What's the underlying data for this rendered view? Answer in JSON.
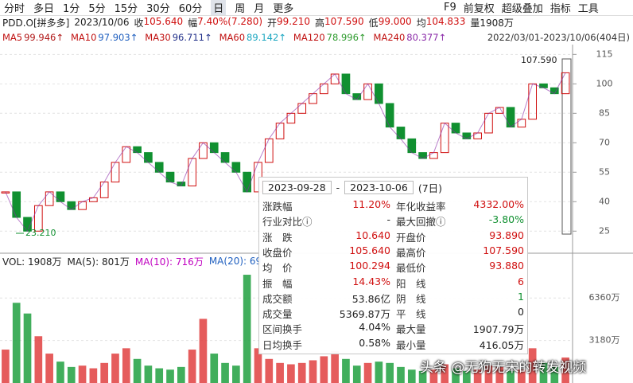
{
  "toolbar": {
    "tabs": [
      "分时",
      "多日",
      "1分",
      "5分",
      "15分",
      "30分",
      "60分",
      "日",
      "周",
      "月",
      "更多"
    ],
    "tools": [
      "F9",
      "前复权",
      "超级叠加",
      "指标",
      "工具"
    ]
  },
  "quote": {
    "symbol": "PDD.O[拼多多]",
    "date": "2023/10/06",
    "items": [
      {
        "label": "收",
        "value": "105.640",
        "color": "#d01010"
      },
      {
        "label": "幅",
        "value": "7.40%(7.280)",
        "color": "#d01010"
      },
      {
        "label": "开",
        "value": "99.210",
        "color": "#d01010"
      },
      {
        "label": "高",
        "value": "107.590",
        "color": "#d01010"
      },
      {
        "label": "低",
        "value": "99.000",
        "color": "#d01010"
      },
      {
        "label": "均",
        "value": "104.833",
        "color": "#d01010"
      },
      {
        "label": "量",
        "value": "1908万",
        "color": "#222222"
      }
    ]
  },
  "ma_legend": [
    {
      "name": "MA5",
      "value": "99.946↑",
      "color": "#b01818"
    },
    {
      "name": "MA10",
      "value": "97.903↑",
      "color": "#1f5fbf"
    },
    {
      "name": "MA30",
      "value": "96.711↑",
      "color": "#23318a"
    },
    {
      "name": "MA60",
      "value": "89.142↑",
      "color": "#1aa6c0"
    },
    {
      "name": "MA120",
      "value": "78.996↑",
      "color": "#2e9b2e"
    },
    {
      "name": "MA240",
      "value": "80.377↑",
      "color": "#8a2aa8"
    }
  ],
  "range": "2022/03/01-2023/10/06(404日)",
  "price": {
    "ylim": [
      17,
      120
    ],
    "yticks": [
      25,
      40,
      55,
      70,
      85,
      100,
      115
    ],
    "grid": true,
    "up_color": "#d01010",
    "down_color": "#109030",
    "closes": [
      45,
      32,
      25,
      38,
      45,
      40,
      36,
      40,
      42,
      50,
      60,
      68,
      65,
      60,
      55,
      50,
      48,
      62,
      70,
      65,
      60,
      55,
      45,
      60,
      72,
      80,
      85,
      90,
      95,
      100,
      105,
      95,
      92,
      100,
      90,
      78,
      72,
      65,
      62,
      65,
      80,
      75,
      72,
      75,
      85,
      88,
      78,
      82,
      100,
      98,
      95,
      105.64
    ],
    "low_label": "23.210",
    "high_label": "107.590"
  },
  "volume": {
    "legend": [
      "VOL: 1908万",
      "MA(5): 801万",
      "MA(10): 716万",
      "MA(20): 69"
    ],
    "ylim": [
      0,
      8400
    ],
    "yticks": [
      {
        "value": 3180,
        "label": "3180万"
      },
      {
        "value": 6360,
        "label": "6360万"
      }
    ],
    "values": [
      2500,
      6000,
      5200,
      3500,
      2200,
      1600,
      1200,
      1300,
      1100,
      1500,
      2200,
      2600,
      1800,
      1300,
      1100,
      1000,
      1200,
      2500,
      4800,
      2200,
      1500,
      1300,
      8100,
      2600,
      1800,
      1500,
      1400,
      1500,
      1700,
      2000,
      2400,
      1800,
      1300,
      1500,
      1600,
      1500,
      1200,
      1000,
      900,
      1000,
      1400,
      1100,
      900,
      1000,
      1300,
      1200,
      900,
      1000,
      2600,
      1500,
      1200,
      1908
    ]
  },
  "popup": {
    "start": "2023-09-28",
    "sep": "-",
    "end": "2023-10-06",
    "days": "(7日)",
    "rows": [
      [
        {
          "label": "涨跌幅",
          "value": "11.20%",
          "color": "#d01010"
        },
        {
          "label": "年化收益率",
          "value": "4332.00%",
          "color": "#d01010"
        }
      ],
      [
        {
          "label": "行业对比ⓘ",
          "value": "-",
          "color": "#222222"
        },
        {
          "label": "最大回撤ⓘ",
          "value": "-3.80%",
          "color": "#109030"
        }
      ],
      [
        {
          "label": "涨　跌",
          "value": "10.640",
          "color": "#d01010"
        },
        {
          "label": "开盘价",
          "value": "93.890",
          "color": "#d01010"
        }
      ],
      [
        {
          "label": "收盘价",
          "value": "105.640",
          "color": "#d01010"
        },
        {
          "label": "最高价",
          "value": "107.590",
          "color": "#d01010"
        }
      ],
      [
        {
          "label": "均　价",
          "value": "100.294",
          "color": "#d01010"
        },
        {
          "label": "最低价",
          "value": "93.880",
          "color": "#d01010"
        }
      ],
      [
        {
          "label": "振　幅",
          "value": "14.43%",
          "color": "#d01010"
        },
        {
          "label": "阳　线",
          "value": "6",
          "color": "#d01010"
        }
      ],
      [
        {
          "label": "成交额",
          "value": "53.86亿",
          "color": "#222222"
        },
        {
          "label": "阴　线",
          "value": "1",
          "color": "#109030"
        }
      ],
      [
        {
          "label": "成交量",
          "value": "5369.87万",
          "color": "#222222"
        },
        {
          "label": "平　线",
          "value": "0",
          "color": "#222222"
        }
      ],
      [
        {
          "label": "区间换手",
          "value": "4.04%",
          "color": "#222222"
        },
        {
          "label": "最大量",
          "value": "1907.79万",
          "color": "#222222"
        }
      ],
      [
        {
          "label": "日均换手",
          "value": "0.58%",
          "color": "#222222"
        },
        {
          "label": "最小量",
          "value": "416.05万",
          "color": "#222222"
        }
      ]
    ]
  },
  "watermark": "头条 @无狗无宋的转发视频"
}
